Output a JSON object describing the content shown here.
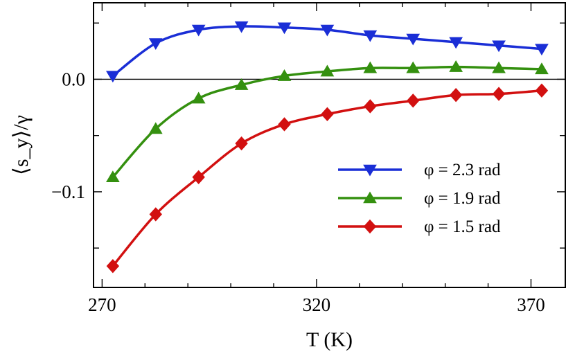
{
  "chart_data": {
    "type": "line",
    "title": "",
    "xlabel": "T (K)",
    "ylabel": "⟨s_y⟩/γ",
    "xlim": [
      268,
      378
    ],
    "ylim": [
      -0.185,
      0.068
    ],
    "xticks": [
      270,
      320,
      370
    ],
    "yticks": [
      0.0,
      -0.1
    ],
    "legend_position": "center-right",
    "grid": false,
    "reference_line_y": 0.0,
    "x": [
      272.5,
      282.5,
      292.5,
      302.5,
      312.5,
      322.5,
      332.5,
      342.5,
      352.5,
      362.5,
      372.5
    ],
    "series": [
      {
        "name": "φ = 2.3 rad",
        "color": "#1a2ed6",
        "marker": "triangle-down",
        "values": [
          0.003,
          0.032,
          0.044,
          0.047,
          0.046,
          0.044,
          0.039,
          0.036,
          0.033,
          0.03,
          0.027
        ]
      },
      {
        "name": "φ = 1.9 rad",
        "color": "#34900f",
        "marker": "triangle-up",
        "values": [
          -0.087,
          -0.044,
          -0.017,
          -0.005,
          0.003,
          0.007,
          0.01,
          0.01,
          0.011,
          0.01,
          0.009
        ]
      },
      {
        "name": "φ = 1.5 rad",
        "color": "#d21010",
        "marker": "diamond",
        "values": [
          -0.166,
          -0.12,
          -0.087,
          -0.057,
          -0.04,
          -0.031,
          -0.024,
          -0.019,
          -0.014,
          -0.013,
          -0.01
        ]
      }
    ]
  }
}
